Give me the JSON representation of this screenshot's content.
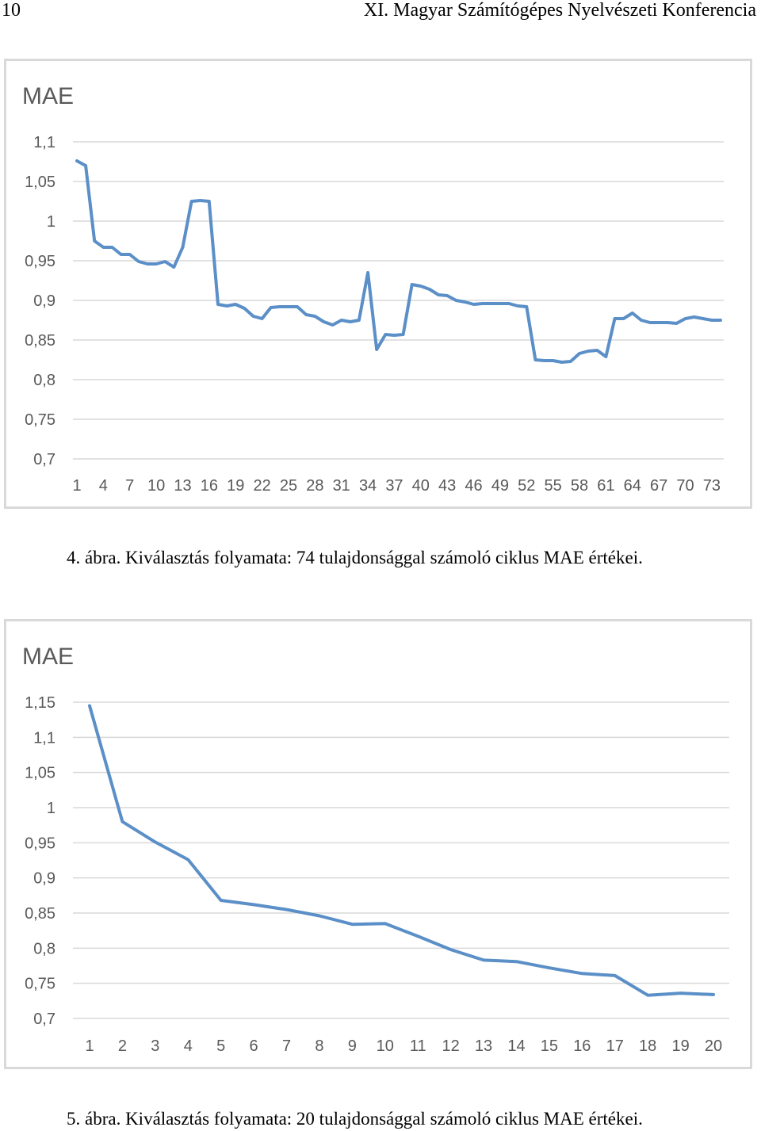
{
  "header": {
    "page_number": "10",
    "title": "XI. Magyar Számítógépes Nyelvészeti Konferencia"
  },
  "captions": {
    "fig4": "4. ábra. Kiválasztás folyamata: 74 tulajdonsággal számoló ciklus MAE értékei.",
    "fig5": "5. ábra. Kiválasztás folyamata: 20 tulajdonsággal számoló ciklus MAE értékei."
  },
  "colors": {
    "line": "#5b8fc7",
    "grid": "#d9d9d9",
    "text": "#595959"
  },
  "chart_data": [
    {
      "type": "line",
      "title": "MAE",
      "xlabel": "",
      "ylabel": "",
      "ylim": [
        0.7,
        1.1
      ],
      "y_ticks": [
        "0,7",
        "0,75",
        "0,8",
        "0,85",
        "0,9",
        "0,95",
        "1",
        "1,05",
        "1,1"
      ],
      "x_tick_labels": [
        "1",
        "4",
        "7",
        "10",
        "13",
        "16",
        "19",
        "22",
        "25",
        "28",
        "31",
        "34",
        "37",
        "40",
        "43",
        "46",
        "49",
        "52",
        "55",
        "58",
        "61",
        "64",
        "67",
        "70",
        "73"
      ],
      "grid": true,
      "legend": "none",
      "x": [
        1,
        2,
        3,
        4,
        5,
        6,
        7,
        8,
        9,
        10,
        11,
        12,
        13,
        14,
        15,
        16,
        17,
        18,
        19,
        20,
        21,
        22,
        23,
        24,
        25,
        26,
        27,
        28,
        29,
        30,
        31,
        32,
        33,
        34,
        35,
        36,
        37,
        38,
        39,
        40,
        41,
        42,
        43,
        44,
        45,
        46,
        47,
        48,
        49,
        50,
        51,
        52,
        53,
        54,
        55,
        56,
        57,
        58,
        59,
        60,
        61,
        62,
        63,
        64,
        65,
        66,
        67,
        68,
        69,
        70,
        71,
        72,
        73,
        74
      ],
      "series": [
        {
          "values": [
            1.076,
            1.07,
            0.975,
            0.967,
            0.967,
            0.958,
            0.958,
            0.949,
            0.946,
            0.946,
            0.949,
            0.942,
            0.967,
            1.025,
            1.026,
            1.025,
            0.895,
            0.893,
            0.895,
            0.89,
            0.88,
            0.877,
            0.891,
            0.892,
            0.892,
            0.892,
            0.882,
            0.88,
            0.873,
            0.869,
            0.875,
            0.873,
            0.875,
            0.935,
            0.838,
            0.857,
            0.856,
            0.857,
            0.92,
            0.918,
            0.914,
            0.907,
            0.906,
            0.9,
            0.898,
            0.895,
            0.896,
            0.896,
            0.896,
            0.896,
            0.893,
            0.892,
            0.825,
            0.824,
            0.824,
            0.822,
            0.823,
            0.833,
            0.836,
            0.837,
            0.829,
            0.877,
            0.877,
            0.884,
            0.875,
            0.872,
            0.872,
            0.872,
            0.871,
            0.877,
            0.879,
            0.877,
            0.875,
            0.875
          ]
        }
      ]
    },
    {
      "type": "line",
      "title": "MAE",
      "xlabel": "",
      "ylabel": "",
      "ylim": [
        0.7,
        1.15
      ],
      "y_ticks": [
        "0,7",
        "0,75",
        "0,8",
        "0,85",
        "0,9",
        "0,95",
        "1",
        "1,05",
        "1,1",
        "1,15"
      ],
      "x_tick_labels": [
        "1",
        "2",
        "3",
        "4",
        "5",
        "6",
        "7",
        "8",
        "9",
        "10",
        "11",
        "12",
        "13",
        "14",
        "15",
        "16",
        "17",
        "18",
        "19",
        "20"
      ],
      "grid": true,
      "legend": "none",
      "x": [
        1,
        2,
        3,
        4,
        5,
        6,
        7,
        8,
        9,
        10,
        11,
        12,
        13,
        14,
        15,
        16,
        17,
        18,
        19,
        20
      ],
      "series": [
        {
          "values": [
            1.145,
            0.98,
            0.951,
            0.926,
            0.868,
            0.862,
            0.855,
            0.846,
            0.834,
            0.835,
            0.817,
            0.798,
            0.783,
            0.781,
            0.772,
            0.764,
            0.761,
            0.733,
            0.736,
            0.734
          ]
        }
      ]
    }
  ]
}
